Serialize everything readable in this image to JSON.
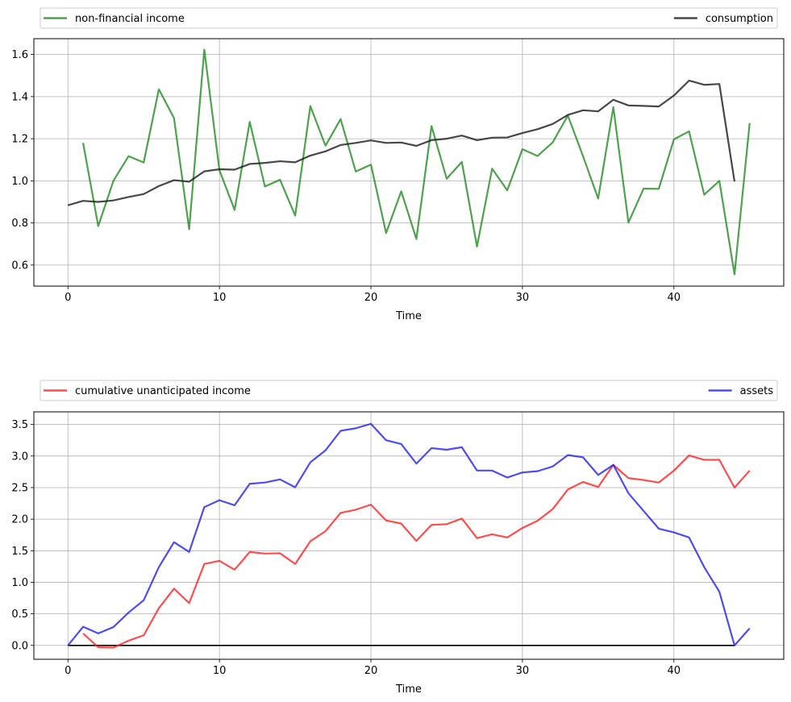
{
  "chart_data": [
    {
      "type": "line",
      "xlabel": "Time",
      "ylabel": "",
      "xlim": [
        -2.25,
        47.25
      ],
      "ylim": [
        0.5,
        1.675
      ],
      "xticks": [
        0,
        10,
        20,
        30,
        40
      ],
      "yticks": [
        0.6,
        0.8,
        1.0,
        1.2,
        1.4,
        1.6
      ],
      "ytick_labels": [
        "0.6",
        "0.8",
        "1.0",
        "1.2",
        "1.4",
        "1.6"
      ],
      "grid": true,
      "legend_placement": "above, expanded across top",
      "series": [
        {
          "name": "non-financial income",
          "color": "#228B22",
          "x_start": 1,
          "values": [
            1.18,
            0.785,
            1.0,
            1.117,
            1.087,
            1.435,
            1.298,
            0.77,
            1.623,
            1.05,
            0.862,
            1.28,
            0.973,
            1.005,
            0.835,
            1.355,
            1.167,
            1.293,
            1.044,
            1.077,
            0.752,
            0.95,
            0.724,
            1.26,
            1.01,
            1.09,
            0.688,
            1.058,
            0.955,
            1.15,
            1.118,
            1.183,
            1.31,
            1.117,
            0.916,
            1.35,
            0.802,
            0.963,
            0.962,
            1.197,
            1.235,
            0.934,
            1.0,
            0.556,
            1.274
          ]
        },
        {
          "name": "consumption",
          "color": "#1a1a1a",
          "x_start": 0,
          "values": [
            0.884,
            0.905,
            0.9,
            0.907,
            0.923,
            0.937,
            0.975,
            1.003,
            0.996,
            1.045,
            1.055,
            1.053,
            1.08,
            1.085,
            1.093,
            1.088,
            1.12,
            1.14,
            1.17,
            1.18,
            1.192,
            1.18,
            1.182,
            1.166,
            1.193,
            1.2,
            1.215,
            1.193,
            1.205,
            1.206,
            1.227,
            1.245,
            1.27,
            1.313,
            1.335,
            1.33,
            1.385,
            1.358,
            1.356,
            1.353,
            1.405,
            1.476,
            1.456,
            1.46,
            0.997
          ]
        }
      ]
    },
    {
      "type": "line",
      "xlabel": "Time",
      "ylabel": "",
      "xlim": [
        -2.25,
        47.25
      ],
      "ylim": [
        -0.22,
        3.7
      ],
      "xticks": [
        0,
        10,
        20,
        30,
        40
      ],
      "yticks": [
        0.0,
        0.5,
        1.0,
        1.5,
        2.0,
        2.5,
        3.0,
        3.5
      ],
      "ytick_labels": [
        "0.0",
        "0.5",
        "1.0",
        "1.5",
        "2.0",
        "2.5",
        "3.0",
        "3.5"
      ],
      "grid": true,
      "legend_placement": "above, expanded across top",
      "hline": {
        "y": 0,
        "x_range": [
          0,
          44
        ],
        "color": "#000000"
      },
      "series": [
        {
          "name": "cumulative unanticipated income",
          "color": "#ff2020",
          "x_start": 1,
          "values": [
            0.19,
            -0.03,
            -0.035,
            0.075,
            0.16,
            0.59,
            0.9,
            0.67,
            1.29,
            1.34,
            1.2,
            1.48,
            1.455,
            1.46,
            1.29,
            1.65,
            1.81,
            2.1,
            2.15,
            2.23,
            1.98,
            1.93,
            1.655,
            1.91,
            1.92,
            2.01,
            1.7,
            1.76,
            1.71,
            1.86,
            1.975,
            2.16,
            2.47,
            2.59,
            2.51,
            2.86,
            2.65,
            2.62,
            2.58,
            2.77,
            3.01,
            2.94,
            2.94,
            2.5,
            2.77
          ]
        },
        {
          "name": "assets",
          "color": "#2020ee",
          "x_start": 0,
          "values": [
            0.0,
            0.295,
            0.19,
            0.29,
            0.52,
            0.715,
            1.24,
            1.635,
            1.48,
            2.19,
            2.3,
            2.22,
            2.56,
            2.58,
            2.63,
            2.505,
            2.9,
            3.09,
            3.4,
            3.44,
            3.51,
            3.25,
            3.19,
            2.88,
            3.125,
            3.1,
            3.14,
            2.77,
            2.77,
            2.66,
            2.74,
            2.76,
            2.835,
            3.015,
            2.98,
            2.7,
            2.86,
            2.41,
            2.13,
            1.85,
            1.79,
            1.71,
            1.24,
            0.85,
            0.0,
            0.27
          ]
        }
      ]
    }
  ]
}
